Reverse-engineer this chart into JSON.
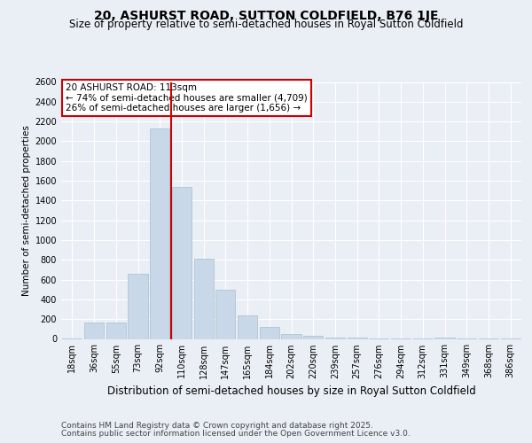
{
  "title1": "20, ASHURST ROAD, SUTTON COLDFIELD, B76 1JE",
  "title2": "Size of property relative to semi-detached houses in Royal Sutton Coldfield",
  "xlabel": "Distribution of semi-detached houses by size in Royal Sutton Coldfield",
  "ylabel": "Number of semi-detached properties",
  "categories": [
    "18sqm",
    "36sqm",
    "55sqm",
    "73sqm",
    "92sqm",
    "110sqm",
    "128sqm",
    "147sqm",
    "165sqm",
    "184sqm",
    "202sqm",
    "220sqm",
    "239sqm",
    "257sqm",
    "276sqm",
    "294sqm",
    "312sqm",
    "331sqm",
    "349sqm",
    "368sqm",
    "386sqm"
  ],
  "values": [
    5,
    170,
    170,
    660,
    2130,
    1540,
    810,
    500,
    240,
    125,
    50,
    30,
    15,
    10,
    5,
    2,
    2,
    15,
    2,
    2,
    2
  ],
  "bar_color": "#c8d8e8",
  "bar_edgecolor": "#a8bfcf",
  "vline_color": "#cc0000",
  "annotation_title": "20 ASHURST ROAD: 113sqm",
  "annotation_line1": "← 74% of semi-detached houses are smaller (4,709)",
  "annotation_line2": "26% of semi-detached houses are larger (1,656) →",
  "annotation_box_color": "#cc0000",
  "ylim": [
    0,
    2600
  ],
  "yticks": [
    0,
    200,
    400,
    600,
    800,
    1000,
    1200,
    1400,
    1600,
    1800,
    2000,
    2200,
    2400,
    2600
  ],
  "footer1": "Contains HM Land Registry data © Crown copyright and database right 2025.",
  "footer2": "Contains public sector information licensed under the Open Government Licence v3.0.",
  "bg_color": "#eaeff5",
  "plot_bg_color": "#eaeff5",
  "title1_fontsize": 10,
  "title2_fontsize": 8.5,
  "xlabel_fontsize": 8.5,
  "ylabel_fontsize": 7.5,
  "tick_fontsize": 7,
  "annotation_fontsize": 7.5,
  "footer_fontsize": 6.5
}
